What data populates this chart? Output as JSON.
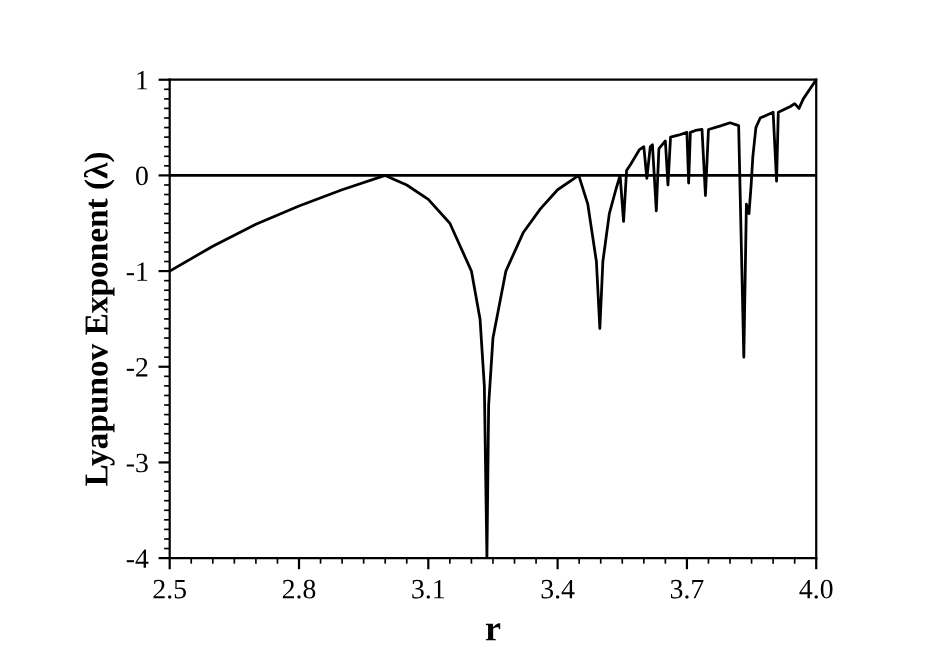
{
  "chart_data": {
    "type": "line",
    "xlabel": "r",
    "ylabel": "Lyapunov Exponent (λ)",
    "xlim": [
      2.5,
      4.0
    ],
    "xticks": [
      {
        "value": 2.5,
        "label": "2.5"
      },
      {
        "value": 2.8,
        "label": "2.8"
      },
      {
        "value": 3.1,
        "label": "3.1"
      },
      {
        "value": 3.4,
        "label": "3.4"
      },
      {
        "value": 3.7,
        "label": "3.7"
      },
      {
        "value": 4.0,
        "label": "4.0"
      }
    ],
    "ylim": [
      -4,
      1
    ],
    "yticks": [
      -4,
      -3,
      -2,
      -1,
      0,
      1
    ],
    "grid": false,
    "legend": false,
    "marker": "none",
    "line_style": "solid",
    "ref_lines": [
      {
        "axis": "y",
        "value": 0,
        "color": "#000000"
      }
    ],
    "series": [
      {
        "color": "#000000",
        "x": [
          2.5,
          2.6,
          2.7,
          2.8,
          2.9,
          3.0,
          3.05,
          3.1,
          3.15,
          3.2,
          3.22,
          3.23,
          3.236,
          3.24,
          3.25,
          3.28,
          3.32,
          3.36,
          3.4,
          3.449,
          3.47,
          3.49,
          3.498,
          3.505,
          3.52,
          3.535,
          3.545,
          3.553,
          3.56,
          3.57,
          3.59,
          3.6,
          3.607,
          3.615,
          3.62,
          3.629,
          3.635,
          3.65,
          3.656,
          3.662,
          3.68,
          3.7,
          3.704,
          3.708,
          3.72,
          3.735,
          3.743,
          3.75,
          3.78,
          3.8,
          3.82,
          3.832,
          3.838,
          3.844,
          3.849,
          3.853,
          3.86,
          3.87,
          3.9,
          3.908,
          3.912,
          3.94,
          3.95,
          3.96,
          3.97,
          4.0
        ],
        "values": [
          -1.0,
          -0.74,
          -0.51,
          -0.32,
          -0.15,
          0.0,
          -0.1,
          -0.25,
          -0.5,
          -1.0,
          -1.5,
          -2.2,
          -4.0,
          -2.4,
          -1.7,
          -1.0,
          -0.6,
          -0.35,
          -0.15,
          0.0,
          -0.3,
          -0.9,
          -1.6,
          -0.9,
          -0.4,
          -0.15,
          0.0,
          -0.48,
          0.05,
          0.12,
          0.27,
          0.3,
          -0.03,
          0.3,
          0.32,
          -0.37,
          0.28,
          0.36,
          -0.1,
          0.4,
          0.42,
          0.45,
          -0.08,
          0.45,
          0.47,
          0.48,
          -0.21,
          0.48,
          0.52,
          0.55,
          0.52,
          -1.9,
          -0.3,
          -0.4,
          -0.1,
          0.2,
          0.5,
          0.6,
          0.66,
          -0.06,
          0.66,
          0.72,
          0.75,
          0.7,
          0.8,
          1.0
        ]
      }
    ]
  }
}
